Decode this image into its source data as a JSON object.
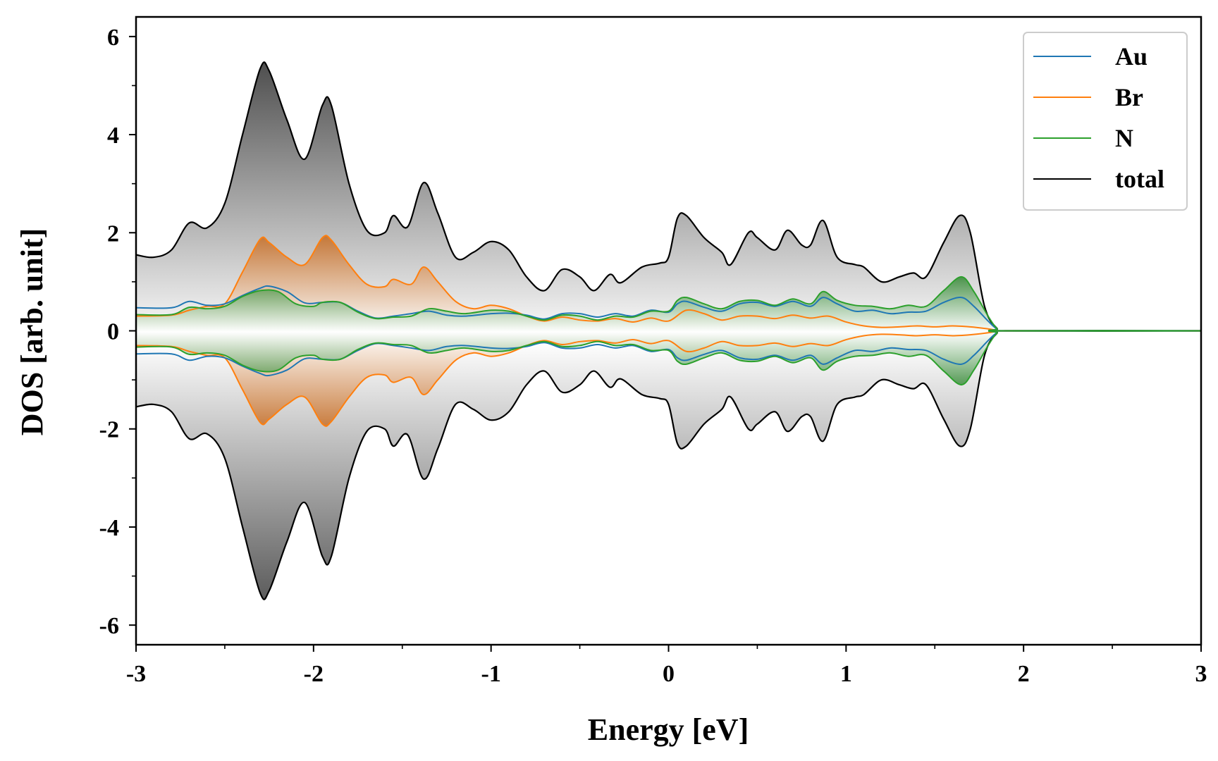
{
  "chart_data": {
    "type": "line",
    "title": "",
    "xlabel": "Energy [eV]",
    "ylabel": "DOS [arb. unit]",
    "xlim": [
      -3,
      3
    ],
    "ylim": [
      -6.4,
      6.4
    ],
    "x_ticks": [
      -3,
      -2,
      -1,
      0,
      1,
      2,
      3
    ],
    "x_tick_labels": [
      "-3",
      "-2",
      "-1",
      "0",
      "1",
      "2",
      "3"
    ],
    "y_ticks": [
      -6,
      -4,
      -2,
      0,
      2,
      4,
      6
    ],
    "y_tick_labels": [
      "-6",
      "-4",
      "-2",
      "0",
      "2",
      "4",
      "6"
    ],
    "legend_position": "top-right",
    "grid": false,
    "mirrored_about_zero": true,
    "series": [
      {
        "name": "Au",
        "color": "#1f77b4",
        "fill": false,
        "points": [
          [
            -3.0,
            0.47
          ],
          [
            -2.8,
            0.47
          ],
          [
            -2.7,
            0.6
          ],
          [
            -2.6,
            0.52
          ],
          [
            -2.5,
            0.55
          ],
          [
            -2.4,
            0.72
          ],
          [
            -2.3,
            0.87
          ],
          [
            -2.25,
            0.91
          ],
          [
            -2.15,
            0.8
          ],
          [
            -2.05,
            0.57
          ],
          [
            -1.95,
            0.58
          ],
          [
            -1.85,
            0.58
          ],
          [
            -1.75,
            0.4
          ],
          [
            -1.65,
            0.26
          ],
          [
            -1.55,
            0.3
          ],
          [
            -1.45,
            0.35
          ],
          [
            -1.35,
            0.4
          ],
          [
            -1.25,
            0.32
          ],
          [
            -1.15,
            0.3
          ],
          [
            -1.0,
            0.35
          ],
          [
            -0.9,
            0.36
          ],
          [
            -0.8,
            0.32
          ],
          [
            -0.7,
            0.24
          ],
          [
            -0.6,
            0.35
          ],
          [
            -0.5,
            0.35
          ],
          [
            -0.4,
            0.28
          ],
          [
            -0.3,
            0.35
          ],
          [
            -0.2,
            0.3
          ],
          [
            -0.1,
            0.42
          ],
          [
            0.0,
            0.38
          ],
          [
            0.05,
            0.55
          ],
          [
            0.1,
            0.6
          ],
          [
            0.2,
            0.48
          ],
          [
            0.3,
            0.4
          ],
          [
            0.4,
            0.55
          ],
          [
            0.5,
            0.58
          ],
          [
            0.6,
            0.5
          ],
          [
            0.7,
            0.6
          ],
          [
            0.8,
            0.5
          ],
          [
            0.87,
            0.68
          ],
          [
            0.95,
            0.55
          ],
          [
            1.05,
            0.4
          ],
          [
            1.15,
            0.42
          ],
          [
            1.25,
            0.35
          ],
          [
            1.35,
            0.38
          ],
          [
            1.45,
            0.4
          ],
          [
            1.55,
            0.58
          ],
          [
            1.65,
            0.68
          ],
          [
            1.72,
            0.5
          ],
          [
            1.8,
            0.2
          ],
          [
            1.85,
            0.04
          ],
          [
            1.9,
            0.0
          ],
          [
            3.0,
            0.0
          ]
        ]
      },
      {
        "name": "Br",
        "color": "#ff7f0e",
        "fill": true,
        "points": [
          [
            -3.0,
            0.3
          ],
          [
            -2.8,
            0.32
          ],
          [
            -2.7,
            0.42
          ],
          [
            -2.6,
            0.5
          ],
          [
            -2.5,
            0.55
          ],
          [
            -2.4,
            1.2
          ],
          [
            -2.3,
            1.87
          ],
          [
            -2.25,
            1.8
          ],
          [
            -2.15,
            1.5
          ],
          [
            -2.05,
            1.35
          ],
          [
            -1.95,
            1.9
          ],
          [
            -1.9,
            1.85
          ],
          [
            -1.8,
            1.35
          ],
          [
            -1.7,
            0.95
          ],
          [
            -1.6,
            0.9
          ],
          [
            -1.55,
            1.05
          ],
          [
            -1.45,
            0.95
          ],
          [
            -1.38,
            1.3
          ],
          [
            -1.3,
            1.0
          ],
          [
            -1.2,
            0.6
          ],
          [
            -1.1,
            0.45
          ],
          [
            -1.0,
            0.52
          ],
          [
            -0.9,
            0.45
          ],
          [
            -0.8,
            0.3
          ],
          [
            -0.7,
            0.2
          ],
          [
            -0.6,
            0.28
          ],
          [
            -0.5,
            0.22
          ],
          [
            -0.4,
            0.2
          ],
          [
            -0.3,
            0.25
          ],
          [
            -0.2,
            0.18
          ],
          [
            -0.1,
            0.26
          ],
          [
            0.0,
            0.2
          ],
          [
            0.1,
            0.42
          ],
          [
            0.2,
            0.35
          ],
          [
            0.3,
            0.22
          ],
          [
            0.4,
            0.3
          ],
          [
            0.5,
            0.3
          ],
          [
            0.6,
            0.25
          ],
          [
            0.7,
            0.32
          ],
          [
            0.8,
            0.26
          ],
          [
            0.9,
            0.3
          ],
          [
            1.0,
            0.18
          ],
          [
            1.1,
            0.1
          ],
          [
            1.2,
            0.07
          ],
          [
            1.3,
            0.08
          ],
          [
            1.4,
            0.1
          ],
          [
            1.5,
            0.08
          ],
          [
            1.6,
            0.1
          ],
          [
            1.7,
            0.08
          ],
          [
            1.8,
            0.04
          ],
          [
            1.85,
            0.01
          ],
          [
            1.9,
            0.0
          ],
          [
            3.0,
            0.0
          ]
        ]
      },
      {
        "name": "N",
        "color": "#2ca02c",
        "fill": true,
        "points": [
          [
            -3.0,
            0.33
          ],
          [
            -2.8,
            0.33
          ],
          [
            -2.7,
            0.48
          ],
          [
            -2.6,
            0.45
          ],
          [
            -2.5,
            0.5
          ],
          [
            -2.4,
            0.7
          ],
          [
            -2.3,
            0.82
          ],
          [
            -2.2,
            0.8
          ],
          [
            -2.1,
            0.55
          ],
          [
            -2.0,
            0.5
          ],
          [
            -1.95,
            0.58
          ],
          [
            -1.85,
            0.58
          ],
          [
            -1.75,
            0.38
          ],
          [
            -1.65,
            0.25
          ],
          [
            -1.55,
            0.28
          ],
          [
            -1.45,
            0.3
          ],
          [
            -1.35,
            0.45
          ],
          [
            -1.25,
            0.4
          ],
          [
            -1.15,
            0.35
          ],
          [
            -1.0,
            0.42
          ],
          [
            -0.9,
            0.4
          ],
          [
            -0.8,
            0.3
          ],
          [
            -0.7,
            0.22
          ],
          [
            -0.6,
            0.32
          ],
          [
            -0.5,
            0.3
          ],
          [
            -0.4,
            0.22
          ],
          [
            -0.3,
            0.3
          ],
          [
            -0.2,
            0.28
          ],
          [
            -0.1,
            0.4
          ],
          [
            0.0,
            0.4
          ],
          [
            0.05,
            0.62
          ],
          [
            0.1,
            0.68
          ],
          [
            0.2,
            0.55
          ],
          [
            0.3,
            0.45
          ],
          [
            0.4,
            0.6
          ],
          [
            0.5,
            0.62
          ],
          [
            0.6,
            0.52
          ],
          [
            0.7,
            0.65
          ],
          [
            0.8,
            0.55
          ],
          [
            0.87,
            0.8
          ],
          [
            0.95,
            0.62
          ],
          [
            1.05,
            0.52
          ],
          [
            1.15,
            0.5
          ],
          [
            1.25,
            0.45
          ],
          [
            1.35,
            0.52
          ],
          [
            1.45,
            0.5
          ],
          [
            1.55,
            0.82
          ],
          [
            1.65,
            1.1
          ],
          [
            1.72,
            0.8
          ],
          [
            1.8,
            0.3
          ],
          [
            1.85,
            0.05
          ],
          [
            1.9,
            0.0
          ],
          [
            3.0,
            0.0
          ]
        ]
      },
      {
        "name": "total",
        "color": "#000000",
        "fill": true,
        "points": [
          [
            -3.0,
            1.55
          ],
          [
            -2.9,
            1.5
          ],
          [
            -2.8,
            1.65
          ],
          [
            -2.7,
            2.2
          ],
          [
            -2.6,
            2.1
          ],
          [
            -2.5,
            2.6
          ],
          [
            -2.4,
            4.0
          ],
          [
            -2.3,
            5.35
          ],
          [
            -2.25,
            5.3
          ],
          [
            -2.15,
            4.3
          ],
          [
            -2.05,
            3.5
          ],
          [
            -1.95,
            4.6
          ],
          [
            -1.9,
            4.6
          ],
          [
            -1.8,
            3.0
          ],
          [
            -1.7,
            2.05
          ],
          [
            -1.6,
            2.0
          ],
          [
            -1.55,
            2.35
          ],
          [
            -1.47,
            2.12
          ],
          [
            -1.38,
            3.02
          ],
          [
            -1.3,
            2.4
          ],
          [
            -1.2,
            1.5
          ],
          [
            -1.1,
            1.6
          ],
          [
            -1.0,
            1.82
          ],
          [
            -0.9,
            1.65
          ],
          [
            -0.8,
            1.1
          ],
          [
            -0.7,
            0.82
          ],
          [
            -0.6,
            1.25
          ],
          [
            -0.5,
            1.1
          ],
          [
            -0.42,
            0.82
          ],
          [
            -0.33,
            1.15
          ],
          [
            -0.27,
            0.98
          ],
          [
            -0.15,
            1.3
          ],
          [
            -0.05,
            1.38
          ],
          [
            0.0,
            1.5
          ],
          [
            0.05,
            2.3
          ],
          [
            0.1,
            2.35
          ],
          [
            0.2,
            1.9
          ],
          [
            0.3,
            1.6
          ],
          [
            0.35,
            1.35
          ],
          [
            0.45,
            2.0
          ],
          [
            0.5,
            1.9
          ],
          [
            0.6,
            1.65
          ],
          [
            0.67,
            2.05
          ],
          [
            0.75,
            1.75
          ],
          [
            0.8,
            1.75
          ],
          [
            0.87,
            2.25
          ],
          [
            0.95,
            1.5
          ],
          [
            1.05,
            1.35
          ],
          [
            1.1,
            1.3
          ],
          [
            1.2,
            1.0
          ],
          [
            1.3,
            1.1
          ],
          [
            1.38,
            1.18
          ],
          [
            1.45,
            1.1
          ],
          [
            1.55,
            1.8
          ],
          [
            1.64,
            2.35
          ],
          [
            1.7,
            2.0
          ],
          [
            1.78,
            0.5
          ],
          [
            1.85,
            0.05
          ],
          [
            1.9,
            0.0
          ],
          [
            3.0,
            0.0
          ]
        ]
      }
    ]
  }
}
